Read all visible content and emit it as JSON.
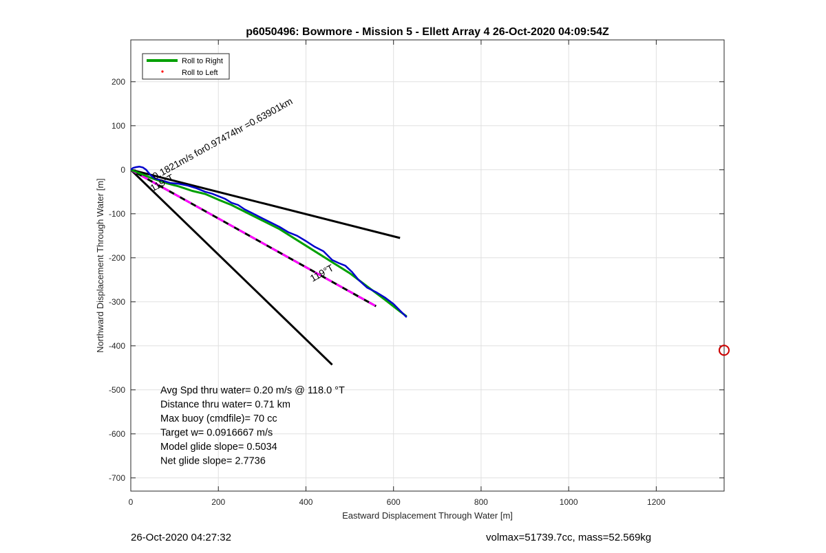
{
  "chart_data": {
    "type": "line",
    "title": "p6050496: Bowmore - Mission 5 - Ellett Array 4 26-Oct-2020 04:09:54Z",
    "xlabel": "Eastward Displacement Through Water [m]",
    "ylabel": "Northward Displacement Through Water [m]",
    "xlim": [
      0,
      1355
    ],
    "ylim": [
      -730,
      295
    ],
    "xticks": [
      0,
      200,
      400,
      600,
      800,
      1000,
      1200
    ],
    "yticks": [
      200,
      100,
      0,
      -100,
      -200,
      -300,
      -400,
      -500,
      -600,
      -700
    ],
    "grid": true,
    "legend": {
      "placement": "top-left",
      "entries": [
        {
          "label": "Roll to Right",
          "color": "#00a000",
          "style": "line"
        },
        {
          "label": "Roll to Left",
          "color": "#ff0000",
          "style": "dot"
        }
      ]
    },
    "series": [
      {
        "name": "Roll to Right",
        "color": "#00a000",
        "x": [
          0,
          20,
          50,
          80,
          110,
          140,
          170,
          200,
          230,
          260,
          300,
          340,
          380,
          420,
          460,
          500,
          540,
          580,
          615,
          630
        ],
        "y": [
          0,
          -8,
          -20,
          -30,
          -38,
          -48,
          -55,
          -68,
          -80,
          -95,
          -115,
          -135,
          -160,
          -185,
          -210,
          -235,
          -265,
          -295,
          -322,
          -333
        ]
      },
      {
        "name": "blue track",
        "color": "#0000cc",
        "x": [
          0,
          5,
          12,
          20,
          28,
          35,
          40,
          45,
          55,
          70,
          90,
          110,
          130,
          150,
          170,
          185,
          200,
          215,
          230,
          245,
          260,
          280,
          300,
          320,
          340,
          360,
          380,
          400,
          420,
          440,
          460,
          475,
          490,
          505,
          520,
          540,
          560,
          580,
          600,
          615,
          630
        ],
        "y": [
          0,
          4,
          6,
          7,
          5,
          0,
          -6,
          -12,
          -20,
          -24,
          -30,
          -32,
          -36,
          -42,
          -50,
          -54,
          -60,
          -66,
          -75,
          -80,
          -90,
          -100,
          -110,
          -120,
          -130,
          -142,
          -150,
          -162,
          -175,
          -185,
          -205,
          -212,
          -218,
          -232,
          -250,
          -268,
          -278,
          -290,
          -305,
          -320,
          -335
        ]
      },
      {
        "name": "magenta dashed",
        "color": "#ff00ff",
        "x": [
          0,
          560
        ],
        "y": [
          0,
          -310
        ]
      },
      {
        "name": "black reference 1",
        "color": "#000000",
        "x": [
          0,
          615
        ],
        "y": [
          0,
          -155
        ]
      },
      {
        "name": "black reference 2",
        "color": "#000000",
        "x": [
          0,
          460
        ],
        "y": [
          0,
          -443
        ]
      }
    ],
    "marker": {
      "x": 1355,
      "y": -410,
      "color": "#cc0000"
    },
    "annotations": [
      {
        "text": "0.1821m/s for0.97474hr =0.63901km",
        "x": 55,
        "y": -23,
        "angle": -29
      },
      {
        "text": "119°T",
        "x": 50,
        "y": -50,
        "angle": -29
      },
      {
        "text": "119°T",
        "x": 415,
        "y": -255,
        "angle": -29
      }
    ],
    "stats": [
      "Avg Spd thru water=  0.20 m/s @ 118.0 °T",
      "Distance thru water=  0.71 km",
      "Max buoy (cmdfile)= 70 cc",
      "Target w= 0.0916667 m/s",
      "Model glide slope= 0.5034",
      "Net glide slope= 2.7736"
    ]
  },
  "footer": {
    "left": "26-Oct-2020 04:27:32",
    "right": "volmax=51739.7cc, mass=52.569kg"
  }
}
